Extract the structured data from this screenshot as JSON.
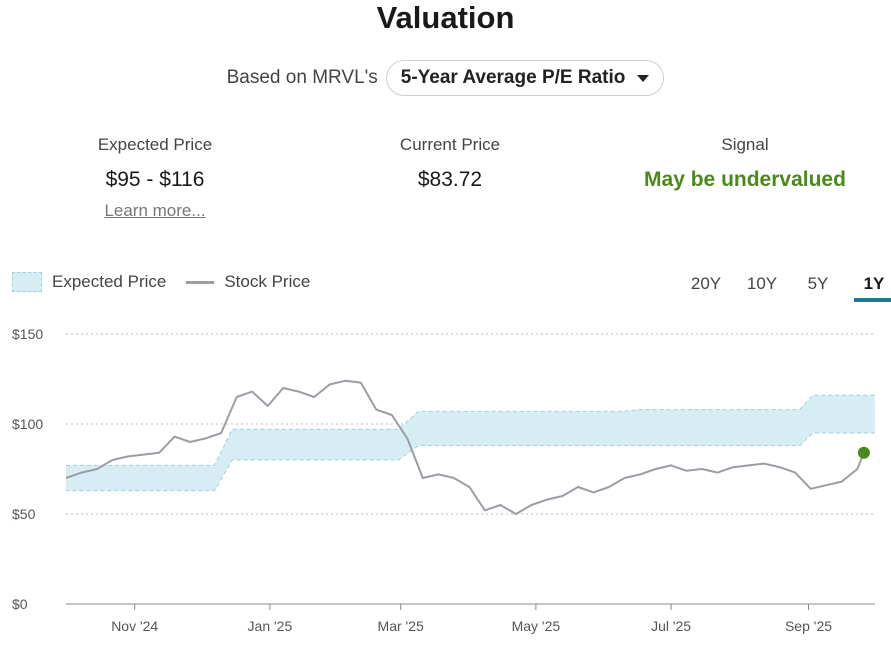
{
  "header": {
    "title": "Valuation",
    "basis_prefix": "Based on MRVL's",
    "basis_selected": "5-Year Average P/E Ratio"
  },
  "stats": {
    "expected_label": "Expected Price",
    "expected_value": "$95 - $116",
    "learn_more": "Learn more...",
    "current_label": "Current Price",
    "current_value": "$83.72",
    "signal_label": "Signal",
    "signal_value": "May be undervalued"
  },
  "legend": {
    "expected": "Expected Price",
    "stock": "Stock Price"
  },
  "ranges": [
    "20Y",
    "10Y",
    "5Y",
    "1Y"
  ],
  "active_range": "1Y",
  "colors": {
    "band_fill": "#d6edf3",
    "band_stroke": "#9ccfd9",
    "stock_line": "#9a9ea4",
    "current_dot": "#4a8a1c",
    "accent": "#1e7a8c"
  },
  "chart_data": {
    "type": "area",
    "title": "",
    "xlabel": "",
    "ylabel": "",
    "ylim": [
      0,
      150
    ],
    "y_ticks": [
      0,
      50,
      100,
      150
    ],
    "y_tick_labels": [
      "$0",
      "$50",
      "$100",
      "$150"
    ],
    "grid": true,
    "x_domain": [
      "2024-10-01",
      "2025-10-01"
    ],
    "x_ticks": [
      {
        "date": "2024-11-01",
        "label": "Nov '24"
      },
      {
        "date": "2025-01-01",
        "label": "Jan '25"
      },
      {
        "date": "2025-03-01",
        "label": "Mar '25"
      },
      {
        "date": "2025-05-01",
        "label": "May '25"
      },
      {
        "date": "2025-07-01",
        "label": "Jul '25"
      },
      {
        "date": "2025-09-01",
        "label": "Sep '25"
      }
    ],
    "series": [
      {
        "name": "Expected Price (band)",
        "dates": [
          "2024-10-01",
          "2024-12-07",
          "2024-12-15",
          "2025-02-28",
          "2025-03-09",
          "2025-06-09",
          "2025-06-17",
          "2025-08-28",
          "2025-09-03",
          "2025-10-01"
        ],
        "low": [
          63,
          63,
          80,
          80,
          88,
          88,
          88,
          88,
          95,
          95
        ],
        "high": [
          77,
          77,
          97,
          97,
          107,
          107,
          108,
          108,
          116,
          116
        ]
      },
      {
        "name": "Stock Price",
        "dates": [
          "2024-10-01",
          "2024-10-08",
          "2024-10-15",
          "2024-10-22",
          "2024-10-29",
          "2024-11-05",
          "2024-11-12",
          "2024-11-19",
          "2024-11-26",
          "2024-12-03",
          "2024-12-10",
          "2024-12-17",
          "2024-12-24",
          "2024-12-31",
          "2025-01-07",
          "2025-01-14",
          "2025-01-21",
          "2025-01-28",
          "2025-02-04",
          "2025-02-11",
          "2025-02-18",
          "2025-02-25",
          "2025-03-04",
          "2025-03-11",
          "2025-03-18",
          "2025-03-25",
          "2025-04-01",
          "2025-04-08",
          "2025-04-15",
          "2025-04-22",
          "2025-04-29",
          "2025-05-06",
          "2025-05-13",
          "2025-05-20",
          "2025-05-27",
          "2025-06-03",
          "2025-06-10",
          "2025-06-17",
          "2025-06-24",
          "2025-07-01",
          "2025-07-08",
          "2025-07-15",
          "2025-07-22",
          "2025-07-29",
          "2025-08-05",
          "2025-08-12",
          "2025-08-19",
          "2025-08-26",
          "2025-09-02",
          "2025-09-09",
          "2025-09-16",
          "2025-09-23",
          "2025-09-26"
        ],
        "values": [
          70,
          73,
          75,
          80,
          82,
          83,
          84,
          93,
          90,
          92,
          95,
          115,
          118,
          110,
          120,
          118,
          115,
          122,
          124,
          123,
          108,
          105,
          92,
          70,
          72,
          70,
          65,
          52,
          55,
          50,
          55,
          58,
          60,
          65,
          62,
          65,
          70,
          72,
          75,
          77,
          74,
          75,
          73,
          76,
          77,
          78,
          76,
          73,
          64,
          66,
          68,
          75,
          84
        ]
      }
    ],
    "current_point": {
      "date": "2025-09-26",
      "value": 84
    }
  }
}
